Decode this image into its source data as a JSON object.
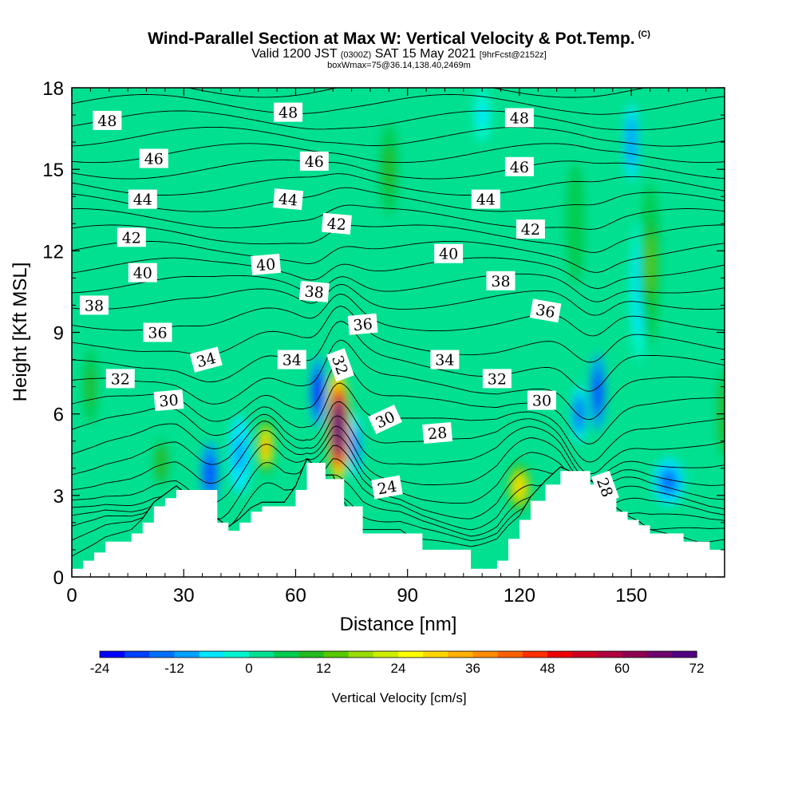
{
  "header": {
    "title": "Wind-Parallel Section at Max W: Vertical Velocity & Pot.Temp.",
    "copyright": "(C)",
    "valid_prefix": "Valid 1200 JST",
    "valid_utc": "(0300Z)",
    "valid_date": "SAT 15 May 2021",
    "forecast": "[9hrFcst@2152z]",
    "box_info": "boxWmax=75@36.14,138.40,2469m"
  },
  "chart_data": {
    "type": "heatmap",
    "title": "Wind-Parallel Section at Max W: Vertical Velocity & Pot.Temp.",
    "xlabel": "Distance [nm]",
    "ylabel": "Height [Kft MSL]",
    "xlim": [
      0,
      175
    ],
    "ylim": [
      0,
      18
    ],
    "x_ticks": [
      "0",
      "30",
      "60",
      "90",
      "120",
      "150"
    ],
    "y_ticks": [
      "0",
      "3",
      "6",
      "9",
      "12",
      "15",
      "18"
    ],
    "colorbar": {
      "label": "Vertical Velocity [cm/s]",
      "ticks": [
        "-24",
        "-12",
        "0",
        "12",
        "24",
        "36",
        "48",
        "60",
        "72"
      ],
      "colors": [
        "#0000ff",
        "#0040ff",
        "#0070ff",
        "#00a0ff",
        "#00e6ff",
        "#00f5d0",
        "#00e090",
        "#00cc50",
        "#22bb22",
        "#55c800",
        "#99dd00",
        "#ccee00",
        "#ffff00",
        "#ffd700",
        "#ffb000",
        "#ff8c00",
        "#ff6000",
        "#ff3000",
        "#ee0000",
        "#cc0020",
        "#b00040",
        "#900050",
        "#700070",
        "#500080"
      ]
    },
    "terrain_kft": [
      [
        0,
        0.3
      ],
      [
        3,
        0.6
      ],
      [
        6,
        0.9
      ],
      [
        9,
        1.3
      ],
      [
        16,
        1.6
      ],
      [
        19,
        2.0
      ],
      [
        22,
        2.6
      ],
      [
        25,
        2.9
      ],
      [
        28,
        3.2
      ],
      [
        39,
        2.0
      ],
      [
        42,
        1.7
      ],
      [
        45,
        2.0
      ],
      [
        48,
        2.4
      ],
      [
        51,
        2.6
      ],
      [
        54,
        2.6
      ],
      [
        57,
        2.6
      ],
      [
        60,
        3.2
      ],
      [
        63,
        4.2
      ],
      [
        68,
        3.6
      ],
      [
        70,
        3.6
      ],
      [
        73,
        2.6
      ],
      [
        78,
        1.6
      ],
      [
        88,
        1.6
      ],
      [
        94,
        1.0
      ],
      [
        107,
        0.3
      ],
      [
        114,
        0.6
      ],
      [
        117,
        1.4
      ],
      [
        120,
        2.1
      ],
      [
        123,
        2.8
      ],
      [
        127,
        3.4
      ],
      [
        131,
        3.9
      ],
      [
        139,
        3.4
      ],
      [
        143,
        3.1
      ],
      [
        146,
        2.4
      ],
      [
        149,
        2.1
      ],
      [
        152,
        1.9
      ],
      [
        155,
        1.6
      ],
      [
        164,
        1.3
      ],
      [
        171,
        1.0
      ],
      [
        175,
        1.0
      ]
    ],
    "theta_contours": [
      {
        "value": "24",
        "label_at": [
          84.5,
          3.3
        ],
        "angle": -10
      },
      {
        "value": "28",
        "label_at": [
          98,
          5.3
        ],
        "angle": -5
      },
      {
        "value": "28",
        "label_at": [
          143,
          3.3
        ],
        "angle": 70
      },
      {
        "value": "30",
        "label_at": [
          26,
          6.5
        ],
        "angle": -5
      },
      {
        "value": "30",
        "label_at": [
          84,
          5.8
        ],
        "angle": -25
      },
      {
        "value": "30",
        "label_at": [
          126,
          6.5
        ],
        "angle": 0
      },
      {
        "value": "32",
        "label_at": [
          13,
          7.3
        ],
        "angle": 0
      },
      {
        "value": "32",
        "label_at": [
          72,
          7.8
        ],
        "angle": 70
      },
      {
        "value": "32",
        "label_at": [
          114,
          7.3
        ],
        "angle": 0
      },
      {
        "value": "34",
        "label_at": [
          36,
          8.0
        ],
        "angle": -15
      },
      {
        "value": "34",
        "label_at": [
          59,
          8.0
        ],
        "angle": 0
      },
      {
        "value": "34",
        "label_at": [
          100,
          8.0
        ],
        "angle": 0
      },
      {
        "value": "36",
        "label_at": [
          23,
          9.0
        ],
        "angle": 0
      },
      {
        "value": "36",
        "label_at": [
          78,
          9.3
        ],
        "angle": -5
      },
      {
        "value": "36",
        "label_at": [
          127,
          9.8
        ],
        "angle": 10
      },
      {
        "value": "38",
        "label_at": [
          6,
          10.0
        ],
        "angle": 0
      },
      {
        "value": "38",
        "label_at": [
          65,
          10.5
        ],
        "angle": 5
      },
      {
        "value": "38",
        "label_at": [
          115,
          10.9
        ],
        "angle": 0
      },
      {
        "value": "40",
        "label_at": [
          19,
          11.2
        ],
        "angle": 0
      },
      {
        "value": "40",
        "label_at": [
          52,
          11.5
        ],
        "angle": -5
      },
      {
        "value": "40",
        "label_at": [
          101,
          11.9
        ],
        "angle": 0
      },
      {
        "value": "42",
        "label_at": [
          16,
          12.5
        ],
        "angle": 0
      },
      {
        "value": "42",
        "label_at": [
          71,
          13.0
        ],
        "angle": 5
      },
      {
        "value": "42",
        "label_at": [
          123,
          12.8
        ],
        "angle": 0
      },
      {
        "value": "44",
        "label_at": [
          19,
          13.9
        ],
        "angle": 0
      },
      {
        "value": "44",
        "label_at": [
          58,
          13.9
        ],
        "angle": 5
      },
      {
        "value": "44",
        "label_at": [
          111,
          13.9
        ],
        "angle": 0
      },
      {
        "value": "46",
        "label_at": [
          22,
          15.4
        ],
        "angle": 0
      },
      {
        "value": "46",
        "label_at": [
          65,
          15.3
        ],
        "angle": 0
      },
      {
        "value": "46",
        "label_at": [
          120,
          15.1
        ],
        "angle": 0
      },
      {
        "value": "48",
        "label_at": [
          9.5,
          16.8
        ],
        "angle": 0
      },
      {
        "value": "48",
        "label_at": [
          58,
          17.1
        ],
        "angle": 0
      },
      {
        "value": "48",
        "label_at": [
          120,
          16.9
        ],
        "angle": 0
      }
    ],
    "w_features": [
      {
        "x": 71.5,
        "y": 5.5,
        "w": 80,
        "rx": 3.5,
        "ry": 2.6
      },
      {
        "x": 70.8,
        "y": 6.5,
        "w": 55,
        "rx": 2.5,
        "ry": 1.4
      },
      {
        "x": 52,
        "y": 4.8,
        "w": 33,
        "rx": 2.5,
        "ry": 1.3
      },
      {
        "x": 120,
        "y": 3.3,
        "w": 28,
        "rx": 3.5,
        "ry": 1.1
      },
      {
        "x": 66,
        "y": 6.8,
        "w": -22,
        "rx": 2.5,
        "ry": 2.0
      },
      {
        "x": 76,
        "y": 4.8,
        "w": -14,
        "rx": 2.0,
        "ry": 1.8
      },
      {
        "x": 37,
        "y": 3.8,
        "w": -20,
        "rx": 3.0,
        "ry": 1.8
      },
      {
        "x": 45,
        "y": 4.5,
        "w": -10,
        "rx": 4.0,
        "ry": 2.2
      },
      {
        "x": 141,
        "y": 6.8,
        "w": -20,
        "rx": 2.5,
        "ry": 2.2
      },
      {
        "x": 136,
        "y": 6.0,
        "w": -16,
        "rx": 2.5,
        "ry": 1.6
      },
      {
        "x": 160,
        "y": 3.5,
        "w": -15,
        "rx": 6.0,
        "ry": 1.3
      },
      {
        "x": 152,
        "y": 10.5,
        "w": -8,
        "rx": 3.0,
        "ry": 4.0
      },
      {
        "x": 150,
        "y": 16.0,
        "w": -12,
        "rx": 2.5,
        "ry": 2.2
      },
      {
        "x": 110,
        "y": 17.0,
        "w": -5,
        "rx": 3.0,
        "ry": 1.5
      },
      {
        "x": 155,
        "y": 11.5,
        "w": 12,
        "rx": 3.0,
        "ry": 4.0
      },
      {
        "x": 24,
        "y": 4.2,
        "w": 10,
        "rx": 3.0,
        "ry": 1.5
      },
      {
        "x": 5,
        "y": 7.0,
        "w": 9,
        "rx": 3.0,
        "ry": 2.5
      },
      {
        "x": 85,
        "y": 15.0,
        "w": 8,
        "rx": 4.0,
        "ry": 3.0
      },
      {
        "x": 175,
        "y": 6.0,
        "w": 10,
        "rx": 3.0,
        "ry": 3.0
      },
      {
        "x": 135,
        "y": 13.0,
        "w": 7,
        "rx": 4.0,
        "ry": 4.0
      }
    ]
  }
}
